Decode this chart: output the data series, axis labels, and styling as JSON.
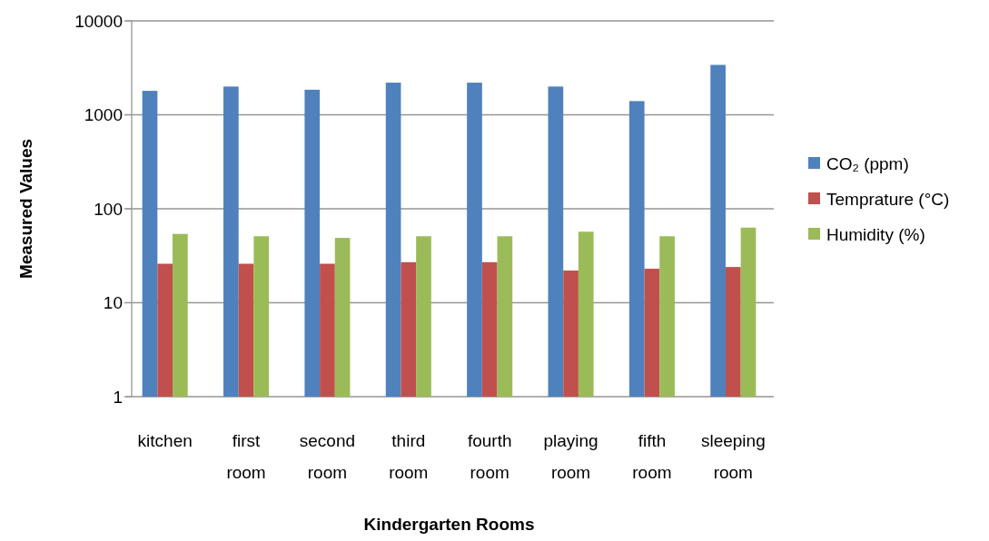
{
  "chart_data": {
    "type": "bar",
    "xlabel": "Kindergarten Rooms",
    "ylabel": "Measured Values",
    "categories": [
      "kitchen",
      "first room",
      "second room",
      "third room",
      "fourth room",
      "playing room",
      "fifth room",
      "sleeping room"
    ],
    "series": [
      {
        "name": "CO₂ (ppm)",
        "color": "#4f81bd",
        "values": [
          1800,
          2000,
          1850,
          2200,
          2200,
          2000,
          1400,
          3400
        ]
      },
      {
        "name": "Temprature (°C)",
        "color": "#c0504d",
        "values": [
          26,
          26,
          26,
          27,
          27,
          22,
          23,
          24
        ]
      },
      {
        "name": "Humidity (%)",
        "color": "#9bbb59",
        "values": [
          54,
          51,
          49,
          51,
          51,
          57,
          51,
          63
        ]
      }
    ],
    "log": true,
    "ylim": [
      1,
      10000
    ],
    "yticks": [
      1,
      10,
      100,
      1000,
      10000
    ],
    "grid": "y",
    "legend": "right"
  }
}
